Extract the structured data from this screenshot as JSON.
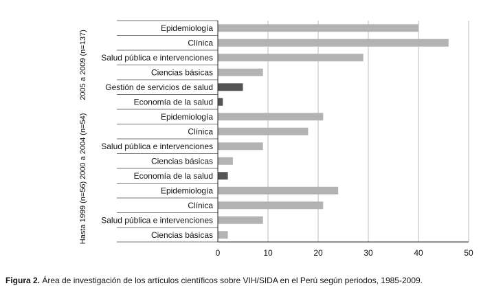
{
  "chart_data": {
    "type": "bar",
    "orientation": "horizontal",
    "xlim": [
      0,
      50
    ],
    "x_ticks": [
      "0",
      "10",
      "20",
      "30",
      "40",
      "50"
    ],
    "groups": [
      {
        "label": "2005 a 2009 (n=137)",
        "bars": [
          {
            "category": "Epidemiología",
            "value": 40,
            "color": "#b3b3b3"
          },
          {
            "category": "Clínica",
            "value": 46,
            "color": "#b3b3b3"
          },
          {
            "category": "Salud pública e intervenciones",
            "value": 29,
            "color": "#b3b3b3"
          },
          {
            "category": "Ciencias básicas",
            "value": 9,
            "color": "#b3b3b3"
          },
          {
            "category": "Gestión de servicios de salud",
            "value": 5,
            "color": "#555555"
          },
          {
            "category": "Economía de la salud",
            "value": 1,
            "color": "#555555"
          }
        ]
      },
      {
        "label": "2000 a 2004 (n=54)",
        "bars": [
          {
            "category": "Epidemiología",
            "value": 21,
            "color": "#b3b3b3"
          },
          {
            "category": "Clínica",
            "value": 18,
            "color": "#b3b3b3"
          },
          {
            "category": "Salud pública e intervenciones",
            "value": 9,
            "color": "#b3b3b3"
          },
          {
            "category": "Ciencias básicas",
            "value": 3,
            "color": "#b3b3b3"
          },
          {
            "category": "Economía de la salud",
            "value": 2,
            "color": "#555555"
          }
        ]
      },
      {
        "label": "Hasta 1999 (n=56)",
        "bars": [
          {
            "category": "Epidemiología",
            "value": 24,
            "color": "#b3b3b3"
          },
          {
            "category": "Clínica",
            "value": 21,
            "color": "#b3b3b3"
          },
          {
            "category": "Salud pública e intervenciones",
            "value": 9,
            "color": "#b3b3b3"
          },
          {
            "category": "Ciencias básicas",
            "value": 2,
            "color": "#b3b3b3"
          }
        ]
      }
    ]
  },
  "caption": {
    "label": "Figura 2.",
    "text": " Área de investigación de los artículos científicos sobre VIH/SIDA en el Perú según periodos, 1985-2009."
  }
}
